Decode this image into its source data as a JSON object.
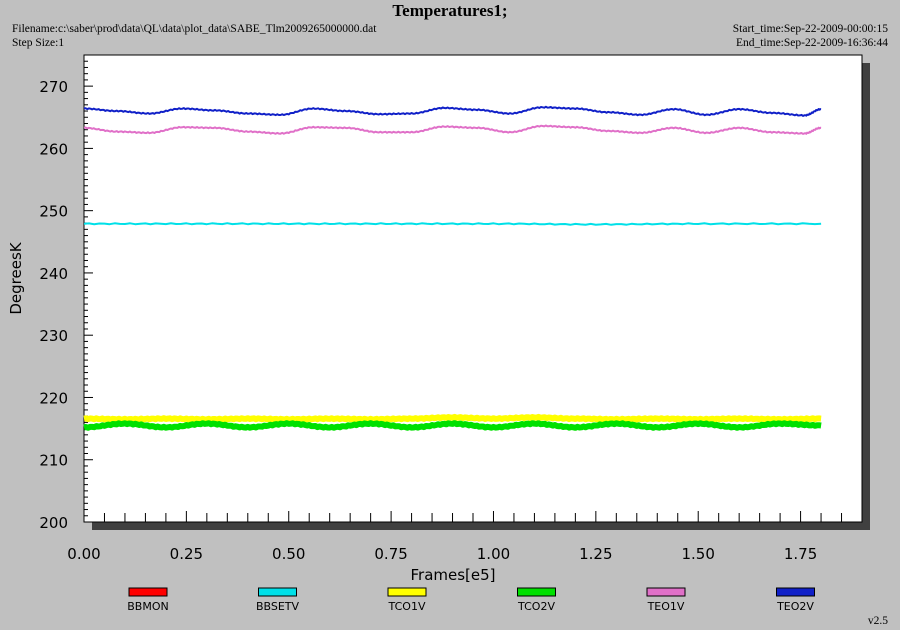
{
  "header": {
    "title": "Temperatures1;",
    "filename": "Filename:c:\\saber\\prod\\data\\QL\\data\\plot_data\\SABE_Tlm2009265000000.dat",
    "step_size": "Step Size:1",
    "start_time": "Start_time:Sep-22-2009-00:00:15",
    "end_time": "End_time:Sep-22-2009-16:36:44"
  },
  "footer": {
    "version": "v2.5"
  },
  "chart_data": {
    "type": "line",
    "title": "Temperatures1;",
    "xlabel": "Frames[e5]",
    "ylabel": "DegreesK",
    "xlim": [
      0.0,
      1.9
    ],
    "ylim": [
      200,
      275
    ],
    "x_ticks": [
      "0.00",
      "0.25",
      "0.50",
      "0.75",
      "1.00",
      "1.25",
      "1.50",
      "1.75"
    ],
    "y_ticks": [
      "200",
      "210",
      "220",
      "230",
      "240",
      "250",
      "260",
      "270"
    ],
    "grid": false,
    "legend_position": "bottom",
    "series": [
      {
        "name": "BBMON",
        "color": "#ff0000",
        "x": [],
        "y": []
      },
      {
        "name": "BBSETV",
        "color": "#00e0e8",
        "x": [
          0.0,
          0.25,
          0.5,
          0.75,
          1.0,
          1.25,
          1.5,
          1.8
        ],
        "y": [
          247.9,
          247.9,
          247.9,
          247.9,
          247.9,
          247.8,
          247.9,
          247.9
        ]
      },
      {
        "name": "TCO1V",
        "color": "#ffff00",
        "x": [
          0.0,
          0.1,
          0.2,
          0.3,
          0.4,
          0.5,
          0.6,
          0.7,
          0.8,
          0.9,
          1.0,
          1.1,
          1.2,
          1.3,
          1.4,
          1.5,
          1.6,
          1.7,
          1.8
        ],
        "y": [
          216.6,
          216.5,
          216.6,
          216.5,
          216.6,
          216.5,
          216.6,
          216.5,
          216.6,
          216.8,
          216.6,
          216.8,
          216.6,
          216.5,
          216.6,
          216.5,
          216.6,
          216.5,
          216.6
        ]
      },
      {
        "name": "TCO2V",
        "color": "#00e000",
        "x": [
          0.0,
          0.1,
          0.2,
          0.3,
          0.4,
          0.5,
          0.6,
          0.7,
          0.8,
          0.9,
          1.0,
          1.1,
          1.2,
          1.3,
          1.4,
          1.5,
          1.6,
          1.7,
          1.8
        ],
        "y": [
          215.2,
          215.8,
          215.2,
          215.8,
          215.2,
          215.8,
          215.2,
          215.8,
          215.2,
          215.8,
          215.2,
          215.8,
          215.2,
          215.8,
          215.2,
          215.8,
          215.2,
          215.8,
          215.5
        ]
      },
      {
        "name": "TEO1V",
        "color": "#e070c8",
        "x": [
          0.0,
          0.08,
          0.16,
          0.24,
          0.32,
          0.4,
          0.48,
          0.56,
          0.64,
          0.72,
          0.8,
          0.88,
          0.96,
          1.04,
          1.12,
          1.2,
          1.28,
          1.36,
          1.44,
          1.52,
          1.6,
          1.68,
          1.76,
          1.8
        ],
        "y": [
          263.3,
          262.7,
          262.5,
          263.4,
          263.3,
          262.7,
          262.4,
          263.4,
          263.3,
          262.6,
          262.6,
          263.5,
          263.3,
          262.6,
          263.6,
          263.4,
          262.8,
          262.5,
          263.3,
          262.5,
          263.3,
          262.6,
          262.4,
          263.3
        ]
      },
      {
        "name": "TEO2V",
        "color": "#1020c8",
        "x": [
          0.0,
          0.08,
          0.16,
          0.24,
          0.32,
          0.4,
          0.48,
          0.56,
          0.64,
          0.72,
          0.8,
          0.88,
          0.96,
          1.04,
          1.12,
          1.2,
          1.28,
          1.36,
          1.44,
          1.52,
          1.6,
          1.68,
          1.76,
          1.8
        ],
        "y": [
          266.4,
          266.0,
          265.6,
          266.4,
          266.1,
          265.6,
          265.4,
          266.4,
          266.0,
          265.5,
          265.6,
          266.5,
          266.2,
          265.6,
          266.6,
          266.4,
          265.8,
          265.4,
          266.3,
          265.4,
          266.3,
          265.7,
          265.3,
          266.3
        ]
      }
    ]
  }
}
